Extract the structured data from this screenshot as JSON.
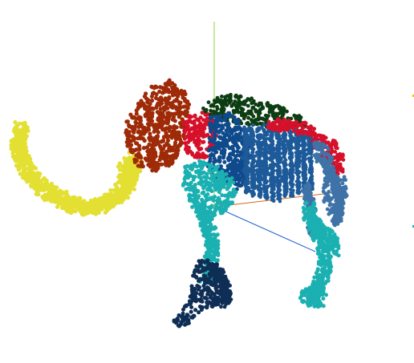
{
  "viewer": {
    "background_color": "#ffffff"
  },
  "axes": {
    "x_axis_color": "#d2691e",
    "y_axis_color": "#8fd13f",
    "z_axis_color": "#1f5fd1"
  },
  "segments": [
    {
      "part": "tusk",
      "color": "#e3e033"
    },
    {
      "part": "head",
      "color": "#9e2a08"
    },
    {
      "part": "neck",
      "color": "#d6102a"
    },
    {
      "part": "shoulder-torso",
      "color": "#0f4a8c"
    },
    {
      "part": "back-ridge",
      "color": "#0d3d12"
    },
    {
      "part": "ribs",
      "color": "#1d5a99"
    },
    {
      "part": "rear-hip",
      "color": "#d6102a"
    },
    {
      "part": "hind-legs",
      "color": "#3f73a8"
    },
    {
      "part": "upper-legs",
      "color": "#1bb0b1"
    },
    {
      "part": "front-foot",
      "color": "#0f2e55"
    }
  ]
}
